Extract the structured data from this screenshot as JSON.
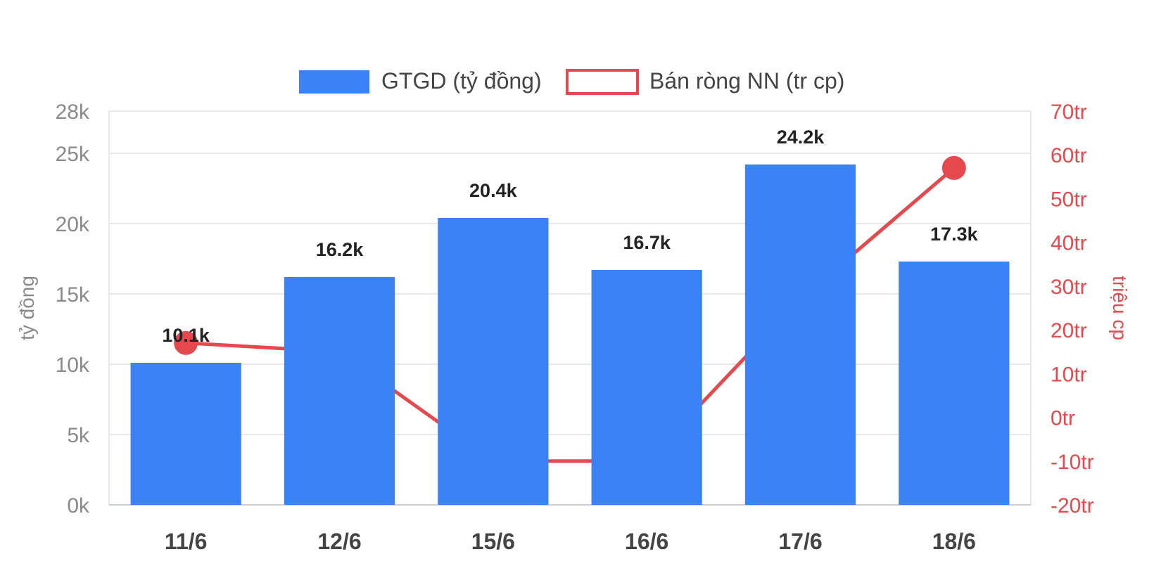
{
  "chart_data": {
    "type": "bar",
    "categories": [
      "11/6",
      "12/6",
      "15/6",
      "16/6",
      "17/6",
      "18/6"
    ],
    "series": [
      {
        "name": "GTGD (tỷ đồng)",
        "type": "bar",
        "axis": "left",
        "color": "#3b82f6",
        "values": [
          10100,
          16200,
          20400,
          16700,
          24200,
          17300
        ],
        "labels": [
          "10.1k",
          "16.2k",
          "20.4k",
          "16.7k",
          "24.2k",
          "17.3k"
        ]
      },
      {
        "name": "Bán ròng NN (tr cp)",
        "type": "line",
        "axis": "right",
        "color": "#e5484d",
        "values": [
          17,
          15,
          -10,
          -10,
          27,
          57
        ]
      }
    ],
    "left_axis": {
      "label": "tỷ đồng",
      "ylim": [
        0,
        28000
      ],
      "ticks": [
        0,
        5000,
        10000,
        15000,
        20000,
        25000,
        28000
      ],
      "tick_labels": [
        "0k",
        "5k",
        "10k",
        "15k",
        "20k",
        "25k",
        "28k"
      ]
    },
    "right_axis": {
      "label": "triệu cp",
      "ylim": [
        -20,
        70
      ],
      "ticks": [
        -20,
        -10,
        0,
        10,
        20,
        30,
        40,
        50,
        60,
        70
      ],
      "tick_labels": [
        "-20tr",
        "-10tr",
        "0tr",
        "10tr",
        "20tr",
        "30tr",
        "40tr",
        "50tr",
        "60tr",
        "70tr"
      ]
    },
    "legend": "top-center",
    "grid": true,
    "colors": {
      "bar": "#3b82f6",
      "line": "#e5484d",
      "grid": "#e8e8e8",
      "left_text": "#8a8a8a",
      "right_text": "#e5484d"
    }
  }
}
